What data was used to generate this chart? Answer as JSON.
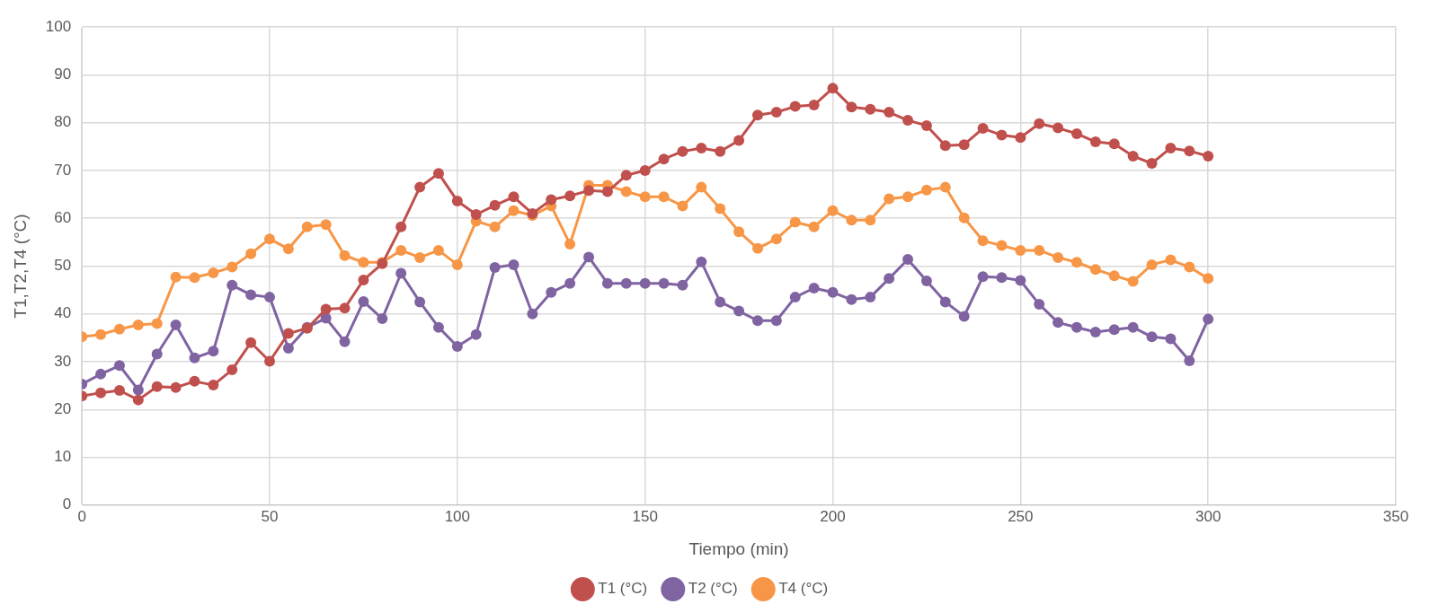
{
  "chart_data": {
    "type": "line",
    "xlabel": "Tiempo (min)",
    "ylabel": "T1,T2,T4 (°C)",
    "x": [
      0,
      5,
      10,
      15,
      20,
      25,
      30,
      35,
      40,
      45,
      50,
      55,
      60,
      65,
      70,
      75,
      80,
      85,
      90,
      95,
      100,
      105,
      110,
      115,
      120,
      125,
      130,
      135,
      140,
      145,
      150,
      155,
      160,
      165,
      170,
      175,
      180,
      185,
      190,
      195,
      200,
      205,
      210,
      215,
      220,
      225,
      230,
      235,
      240,
      245,
      250,
      255,
      260,
      265,
      270,
      275,
      280,
      285,
      290,
      295,
      300
    ],
    "series": [
      {
        "name": "T1 (°C)",
        "color": "#c0504d",
        "values": [
          22.8,
          23.5,
          24,
          22,
          24.8,
          24.6,
          25.9,
          25.1,
          28.3,
          34,
          30.1,
          35.9,
          37,
          41,
          41.2,
          47.1,
          50.5,
          58.2,
          66.5,
          69.4,
          63.6,
          60.8,
          62.7,
          64.5,
          61,
          63.9,
          64.7,
          65.8,
          65.6,
          69,
          70,
          72.4,
          74,
          74.7,
          74,
          76.3,
          81.6,
          82.2,
          83.4,
          83.7,
          87.2,
          83.3,
          82.8,
          82.2,
          80.5,
          79.4,
          75.2,
          75.4,
          78.8,
          77.4,
          76.9,
          79.8,
          78.9,
          77.7,
          76,
          75.6,
          73,
          71.5,
          74.7,
          74.1,
          73
        ]
      },
      {
        "name": "T2 (°C)",
        "color": "#8064a2",
        "values": [
          25.3,
          27.4,
          29.2,
          24.1,
          31.6,
          37.7,
          30.8,
          32.2,
          46,
          44,
          43.5,
          32.8,
          37.2,
          39.1,
          34.2,
          42.6,
          39,
          48.5,
          42.5,
          37.2,
          33.2,
          35.7,
          49.7,
          50.3,
          40,
          44.5,
          46.4,
          51.9,
          46.4,
          46.4,
          46.4,
          46.4,
          46,
          50.9,
          42.5,
          40.6,
          38.6,
          38.6,
          43.5,
          45.4,
          44.5,
          43,
          43.5,
          47.4,
          51.4,
          46.9,
          42.5,
          39.5,
          47.8,
          47.6,
          47,
          42,
          38.2,
          37.2,
          36.2,
          36.7,
          37.2,
          35.2,
          34.8,
          30.2,
          38.9
        ]
      },
      {
        "name": "T4 (°C)",
        "color": "#f79646",
        "values": [
          35.2,
          35.7,
          36.8,
          37.7,
          38,
          47.7,
          47.6,
          48.6,
          49.8,
          52.6,
          55.7,
          53.6,
          58.2,
          58.7,
          52.2,
          50.8,
          50.8,
          53.3,
          51.8,
          53.3,
          50.3,
          59.4,
          58.2,
          61.6,
          60.6,
          62.6,
          54.6,
          66.9,
          66.9,
          65.6,
          64.5,
          64.5,
          62.6,
          66.5,
          62,
          57.2,
          53.7,
          55.7,
          59.2,
          58.2,
          61.6,
          59.6,
          59.6,
          64.1,
          64.5,
          65.9,
          66.5,
          60.1,
          55.3,
          54.3,
          53.3,
          53.3,
          51.8,
          50.8,
          49.3,
          48,
          46.8,
          50.3,
          51.3,
          49.8,
          47.4
        ]
      }
    ],
    "xlim": [
      0,
      350
    ],
    "xticks": [
      0,
      50,
      100,
      150,
      200,
      250,
      300,
      350
    ],
    "ylim": [
      0,
      100
    ],
    "yticks": [
      0,
      10,
      20,
      30,
      40,
      50,
      60,
      70,
      80,
      90,
      100
    ],
    "grid": true,
    "legend": "bottom",
    "marker": "circle",
    "line_style": "solid"
  }
}
